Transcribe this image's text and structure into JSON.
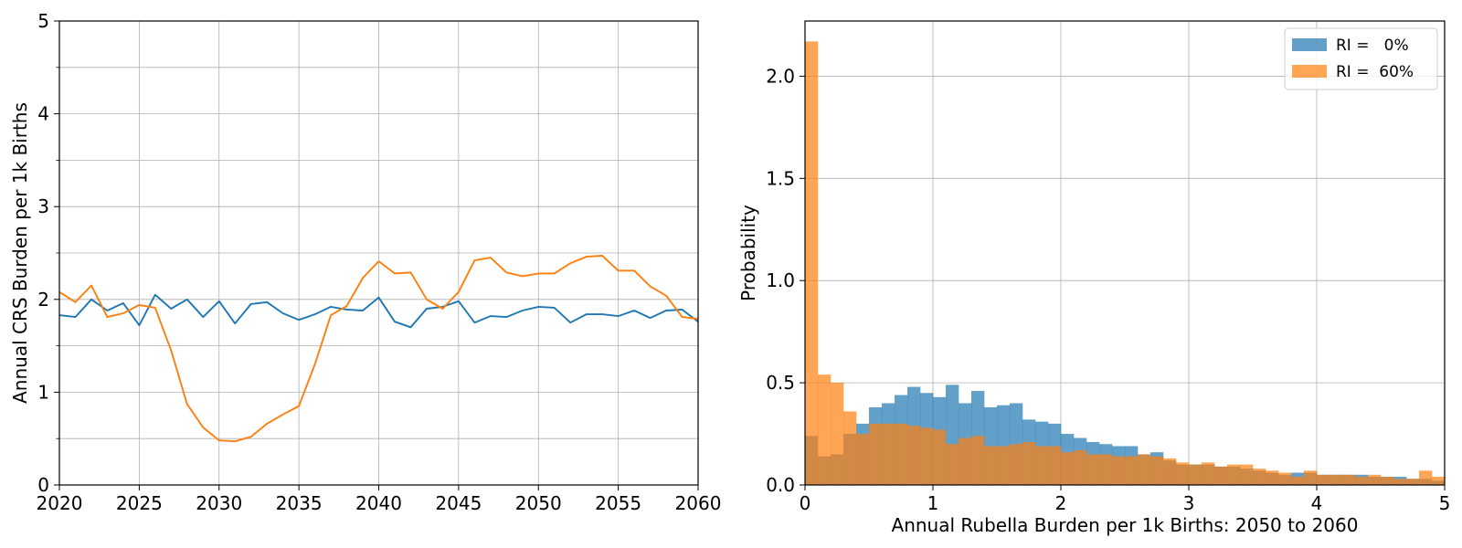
{
  "chart_data": [
    {
      "type": "line",
      "title": "",
      "xlabel": "",
      "ylabel": "Annual CRS Burden per 1k Births",
      "xlim": [
        2020,
        2060
      ],
      "ylim": [
        0,
        5
      ],
      "xticks": [
        "2020",
        "2025",
        "2030",
        "2035",
        "2040",
        "2045",
        "2050",
        "2055",
        "2060"
      ],
      "yticks": [
        "0",
        "1",
        "2",
        "3",
        "4",
        "5"
      ],
      "grid": true,
      "series": [
        {
          "color": "#1f77b4",
          "x": [
            2020,
            2021,
            2022,
            2023,
            2024,
            2025,
            2026,
            2027,
            2028,
            2029,
            2030,
            2031,
            2032,
            2033,
            2034,
            2035,
            2036,
            2037,
            2038,
            2039,
            2040,
            2041,
            2042,
            2043,
            2044,
            2045,
            2046,
            2047,
            2048,
            2049,
            2050,
            2051,
            2052,
            2053,
            2054,
            2055,
            2056,
            2057,
            2058,
            2059,
            2060
          ],
          "values": [
            1.83,
            1.81,
            2.0,
            1.88,
            1.96,
            1.72,
            2.05,
            1.9,
            2.0,
            1.81,
            1.98,
            1.74,
            1.95,
            1.97,
            1.85,
            1.78,
            1.84,
            1.92,
            1.89,
            1.88,
            2.02,
            1.76,
            1.7,
            1.9,
            1.92,
            1.98,
            1.75,
            1.82,
            1.81,
            1.88,
            1.92,
            1.91,
            1.75,
            1.84,
            1.84,
            1.82,
            1.88,
            1.8,
            1.88,
            1.89,
            1.76
          ]
        },
        {
          "color": "#ff7f0e",
          "x": [
            2020,
            2021,
            2022,
            2023,
            2024,
            2025,
            2026,
            2027,
            2028,
            2029,
            2030,
            2031,
            2032,
            2033,
            2034,
            2035,
            2036,
            2037,
            2038,
            2039,
            2040,
            2041,
            2042,
            2043,
            2044,
            2045,
            2046,
            2047,
            2048,
            2049,
            2050,
            2051,
            2052,
            2053,
            2054,
            2055,
            2056,
            2057,
            2058,
            2059,
            2060
          ],
          "values": [
            2.08,
            1.97,
            2.15,
            1.81,
            1.85,
            1.94,
            1.91,
            1.45,
            0.87,
            0.62,
            0.48,
            0.47,
            0.52,
            0.66,
            0.76,
            0.85,
            1.3,
            1.83,
            1.93,
            2.23,
            2.41,
            2.28,
            2.29,
            2.0,
            1.9,
            2.08,
            2.42,
            2.45,
            2.29,
            2.25,
            2.28,
            2.28,
            2.39,
            2.46,
            2.47,
            2.31,
            2.31,
            2.14,
            2.04,
            1.81,
            1.79
          ]
        }
      ]
    },
    {
      "type": "bar",
      "subtype": "histogram",
      "title": "",
      "xlabel": "Annual Rubella Burden per 1k Births: 2050 to 2060",
      "ylabel": "Probability",
      "xlim": [
        0,
        5
      ],
      "ylim": [
        0,
        2.27
      ],
      "xticks": [
        "0",
        "1",
        "2",
        "3",
        "4",
        "5"
      ],
      "yticks": [
        "0.0",
        "0.5",
        "1.0",
        "1.5",
        "2.0"
      ],
      "grid": true,
      "legend": "top-right",
      "bin_width": 0.1,
      "bin_start": 0,
      "series": [
        {
          "name": "RI =   0%",
          "color": "#1f77b4",
          "alpha": 0.7,
          "values": [
            0.24,
            0.14,
            0.15,
            0.25,
            0.3,
            0.38,
            0.4,
            0.44,
            0.48,
            0.45,
            0.43,
            0.49,
            0.4,
            0.46,
            0.38,
            0.39,
            0.4,
            0.32,
            0.31,
            0.3,
            0.25,
            0.23,
            0.21,
            0.2,
            0.19,
            0.19,
            0.15,
            0.16,
            0.12,
            0.1,
            0.1,
            0.1,
            0.09,
            0.09,
            0.08,
            0.07,
            0.06,
            0.05,
            0.06,
            0.06,
            0.05,
            0.05,
            0.05,
            0.05,
            0.04,
            0.04,
            0.04,
            0.03,
            0.03,
            0.02
          ]
        },
        {
          "name": "RI =  60%",
          "color": "#ff7f0e",
          "alpha": 0.7,
          "values": [
            2.17,
            0.54,
            0.5,
            0.36,
            0.25,
            0.3,
            0.3,
            0.3,
            0.29,
            0.28,
            0.27,
            0.2,
            0.23,
            0.24,
            0.19,
            0.19,
            0.2,
            0.21,
            0.19,
            0.19,
            0.16,
            0.17,
            0.15,
            0.15,
            0.14,
            0.14,
            0.15,
            0.14,
            0.13,
            0.11,
            0.1,
            0.11,
            0.09,
            0.1,
            0.1,
            0.08,
            0.07,
            0.06,
            0.04,
            0.07,
            0.05,
            0.05,
            0.05,
            0.04,
            0.05,
            0.04,
            0.03,
            0.03,
            0.07,
            0.04
          ]
        }
      ]
    }
  ]
}
